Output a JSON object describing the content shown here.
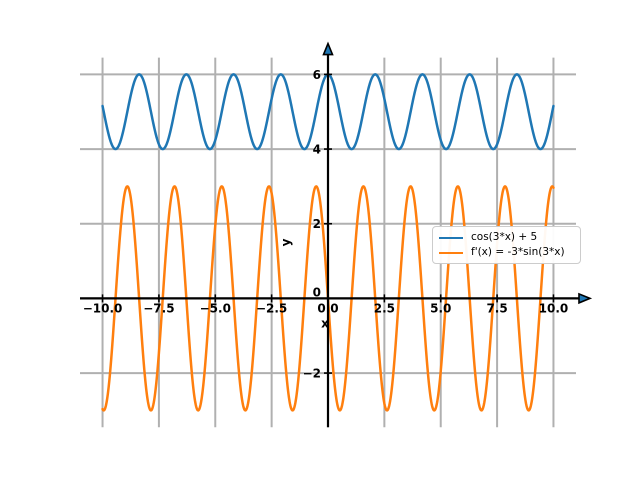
{
  "figure": {
    "background": "#ffffff",
    "grid_color": "#b0b0b0",
    "axis_color": "#000000",
    "arrow_fill": "#1f77b4"
  },
  "chart_data": {
    "type": "line",
    "xlabel": "x",
    "ylabel": "y",
    "grid": true,
    "legend_position": "center right",
    "x_range": [
      -10,
      10
    ],
    "xlim": [
      -11,
      11
    ],
    "ylim": [
      -3.45,
      6.45
    ],
    "x_ticks": {
      "values": [
        -10.0,
        -7.5,
        -5.0,
        -2.5,
        0.0,
        2.5,
        5.0,
        7.5,
        10.0
      ],
      "labels": [
        "−10.0",
        "−7.5",
        "−5.0",
        "−2.5",
        "0.0",
        "2.5",
        "5.0",
        "7.5",
        "10.0"
      ]
    },
    "y_ticks": {
      "values": [
        -2,
        0,
        2,
        4,
        6
      ],
      "labels": [
        "−2",
        "0",
        "2",
        "4",
        "6"
      ]
    },
    "series": [
      {
        "name": "cos(3*x) + 5",
        "expression": "cos(3*x) + 5",
        "base": "cosine",
        "frequency": 3,
        "amplitude": 1,
        "offset": 5,
        "color": "#1f77b4",
        "linewidth": 2.5
      },
      {
        "name": "f'(x) = -3*sin(3*x)",
        "expression": "-3*sin(3*x)",
        "base": "sine",
        "frequency": 3,
        "amplitude": -3,
        "offset": 0,
        "color": "#ff7f0e",
        "linewidth": 2.5
      }
    ]
  }
}
